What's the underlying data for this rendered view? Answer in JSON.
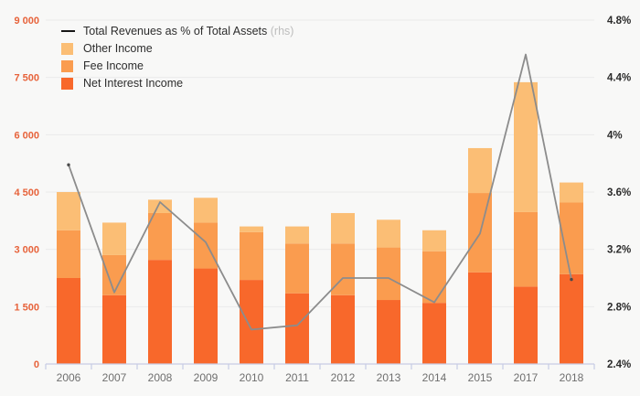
{
  "chart_data": {
    "type": "bar",
    "subtype": "stacked-bars-with-line-overlay",
    "categories": [
      "2006",
      "2007",
      "2008",
      "2009",
      "2010",
      "2011",
      "2012",
      "2013",
      "2014",
      "2015",
      "2017",
      "2018"
    ],
    "series": [
      {
        "name": "Net Interest Income",
        "type": "bar",
        "color": "#F8682B",
        "values": [
          2250,
          1800,
          2725,
          2500,
          2200,
          1850,
          1800,
          1675,
          1600,
          2400,
          2025,
          2350
        ]
      },
      {
        "name": "Fee Income",
        "type": "bar",
        "color": "#FA9C4F",
        "values": [
          1250,
          1050,
          1225,
          1200,
          1250,
          1300,
          1350,
          1375,
          1350,
          2075,
          1950,
          1875
        ]
      },
      {
        "name": "Other Income",
        "type": "bar",
        "color": "#FBBE75",
        "values": [
          1000,
          850,
          350,
          650,
          150,
          450,
          800,
          725,
          550,
          1175,
          3400,
          525
        ]
      },
      {
        "name": "Total Revenues as % of Total Assets",
        "suffix": "(rhs)",
        "type": "line",
        "axis": "right",
        "color": "#8C8C8C",
        "values": [
          3.79,
          2.9,
          3.53,
          3.25,
          2.64,
          2.67,
          3.0,
          3.0,
          2.83,
          3.31,
          4.56,
          2.99
        ]
      }
    ],
    "left_axis": {
      "min": 0,
      "max": 9000,
      "step": 1500,
      "tick_labels": [
        "0",
        "1 500",
        "3 000",
        "4 500",
        "6 000",
        "7 500",
        "9 000"
      ],
      "label_color": "#E7633B"
    },
    "right_axis": {
      "min": 2.4,
      "max": 4.8,
      "step": 0.4,
      "tick_labels": [
        "2.4%",
        "2.8%",
        "3.2%",
        "3.6%",
        "4%",
        "4.4%",
        "4.8%"
      ],
      "label_color": "#2B2B2B"
    },
    "grid": true,
    "legend_position": "top-left",
    "title": "",
    "xlabel": "",
    "ylabel": ""
  },
  "style": {
    "background": "#F8F8F7",
    "gridline_color": "#EAEAEA",
    "axis_line_color": "#C7CCE4",
    "x_label_color": "#6F6F6F",
    "line_endcap_color": "#4A4A4A",
    "legend_line_marker_color": "#161616"
  },
  "legend": {
    "rhs_note": "(rhs)"
  }
}
